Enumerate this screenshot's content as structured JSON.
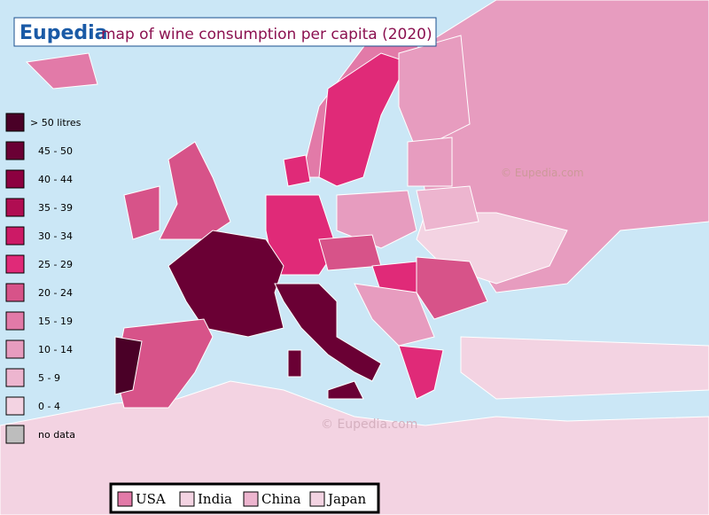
{
  "header": {
    "brand": "Eupedia",
    "title": "map of wine consumption per capita (2020)"
  },
  "legend": [
    {
      "label": "> 50 litres",
      "color": "#4a0027"
    },
    {
      "label": "45 - 50",
      "color": "#6a0034"
    },
    {
      "label": "40 - 44",
      "color": "#8c0040"
    },
    {
      "label": "35 - 39",
      "color": "#b00d52"
    },
    {
      "label": "30 - 34",
      "color": "#cc1a66"
    },
    {
      "label": "25 - 29",
      "color": "#e02a78"
    },
    {
      "label": "20 - 24",
      "color": "#d75389"
    },
    {
      "label": "15 - 19",
      "color": "#e27aa8"
    },
    {
      "label": "10 - 14",
      "color": "#e79cbf"
    },
    {
      "label": "5 - 9",
      "color": "#edb5cf"
    },
    {
      "label": "0 - 4",
      "color": "#f3d3e2"
    },
    {
      "label": "no data",
      "color": "#bdbdbd"
    }
  ],
  "watermarks": [
    "© Eupedia.com",
    "©  Eupedia.com"
  ],
  "others": [
    {
      "label": "USA",
      "color": "#e27aa8"
    },
    {
      "label": "India",
      "color": "#f3d3e2"
    },
    {
      "label": "China",
      "color": "#edb5cf"
    },
    {
      "label": "Japan",
      "color": "#f3d3e2"
    }
  ]
}
